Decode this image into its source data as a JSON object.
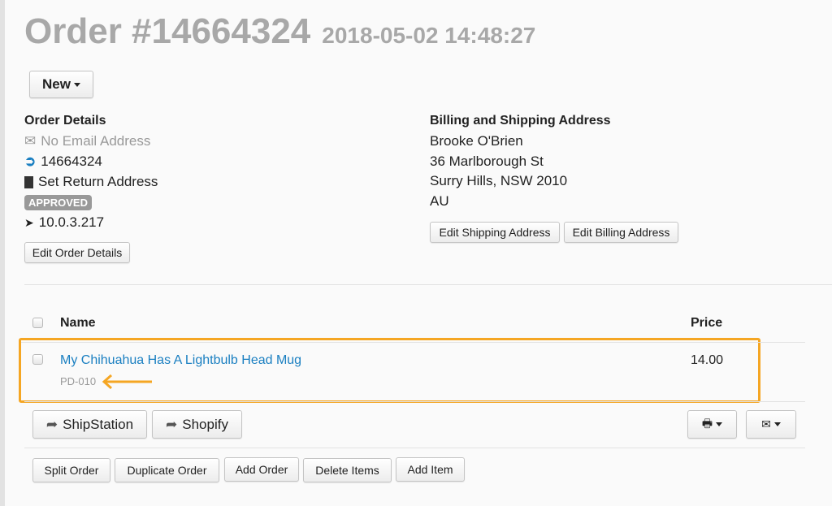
{
  "header": {
    "title": "Order #14664324",
    "datetime": "2018-05-02 14:48:27",
    "new_label": "New"
  },
  "order_details": {
    "heading": "Order Details",
    "email": "No Email Address",
    "order_id": "14664324",
    "return_address": "Set Return Address",
    "status": "APPROVED",
    "ip": "10.0.3.217",
    "edit_label": "Edit Order Details"
  },
  "address": {
    "heading": "Billing and Shipping Address",
    "name": "Brooke O'Brien",
    "street": "36 Marlborough St",
    "city": "Surry Hills, NSW 2010",
    "country": "AU",
    "edit_shipping": "Edit Shipping Address",
    "edit_billing": "Edit Billing Address"
  },
  "table": {
    "columns": [
      "Name",
      "Price"
    ],
    "rows": [
      {
        "name": "My Chihuahua Has A Lightbulb Head Mug",
        "sku": "PD-010",
        "price": "14.00"
      }
    ]
  },
  "actions": {
    "shipstation": "ShipStation",
    "shopify": "Shopify",
    "split": "Split Order",
    "duplicate": "Duplicate Order",
    "add_order": "Add Order",
    "delete_items": "Delete Items",
    "add_item": "Add Item"
  },
  "colors": {
    "highlight": "#f5a623",
    "link": "#1a7fc1",
    "title": "#a8a8a8"
  }
}
